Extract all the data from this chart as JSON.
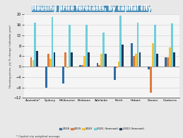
{
  "title": "Housing price forecasts, by capital city",
  "title_bg": "#4a8db5",
  "ylabel": "Housing prices, y/y % change (calendar year)",
  "footnote": "* Capital city weighted average",
  "categories": [
    "Australia*",
    "Sydney",
    "Melbourne",
    "Brisbane",
    "Adelaide",
    "Perth",
    "Hobart",
    "Darwin",
    "Canberra"
  ],
  "series": {
    "2018": {
      "color": "#2e6da4",
      "values": [
        0.0,
        -8.0,
        -6.5,
        0.5,
        1.5,
        -5.0,
        9.0,
        -1.0,
        3.5
      ]
    },
    "2019": {
      "color": "#e07b39",
      "values": [
        3.5,
        5.0,
        5.5,
        0.5,
        0.5,
        -0.5,
        4.0,
        -10.0,
        3.5
      ]
    },
    "2020": {
      "color": "#f0c040",
      "values": [
        2.5,
        3.0,
        -0.5,
        4.0,
        5.0,
        2.0,
        5.0,
        9.0,
        7.5
      ]
    },
    "2021 (forecast)": {
      "color": "#6dcfda",
      "values": [
        17.0,
        19.0,
        16.0,
        16.0,
        13.0,
        19.5,
        17.0,
        16.0,
        16.5
      ]
    },
    "2022 (forecast)": {
      "color": "#1a3a5c",
      "values": [
        6.0,
        5.5,
        5.5,
        5.5,
        5.0,
        8.5,
        5.5,
        5.0,
        5.5
      ]
    }
  },
  "ylim": [
    -12,
    20
  ],
  "yticks": [
    -12,
    -8,
    -4,
    0,
    4,
    8,
    12,
    16,
    20
  ],
  "bg_color": "#e8e8e8",
  "plot_bg": "#f5f5f5"
}
